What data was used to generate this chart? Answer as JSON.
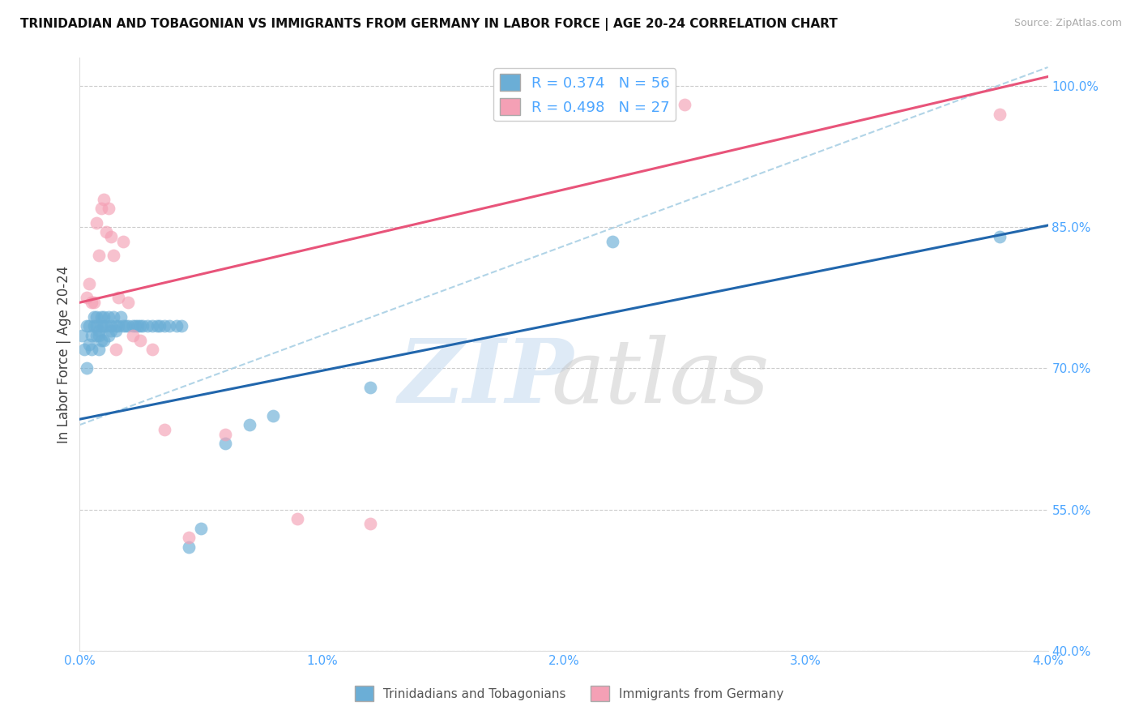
{
  "title": "TRINIDADIAN AND TOBAGONIAN VS IMMIGRANTS FROM GERMANY IN LABOR FORCE | AGE 20-24 CORRELATION CHART",
  "source": "Source: ZipAtlas.com",
  "ylabel": "In Labor Force | Age 20-24",
  "xlim": [
    0.0,
    0.04
  ],
  "ylim": [
    0.4,
    1.03
  ],
  "xtick_labels": [
    "0.0%",
    "1.0%",
    "2.0%",
    "3.0%",
    "4.0%"
  ],
  "xtick_values": [
    0.0,
    0.01,
    0.02,
    0.03,
    0.04
  ],
  "ytick_labels": [
    "40.0%",
    "55.0%",
    "70.0%",
    "85.0%",
    "100.0%"
  ],
  "ytick_values": [
    0.4,
    0.55,
    0.7,
    0.85,
    1.0
  ],
  "blue_color": "#6baed6",
  "pink_color": "#f4a0b5",
  "blue_line_color": "#2166ac",
  "pink_line_color": "#e8547a",
  "dashed_line_color": "#9ecae1",
  "R_blue": 0.374,
  "N_blue": 56,
  "R_pink": 0.498,
  "N_pink": 27,
  "legend_label_blue": "Trinidadians and Tobagonians",
  "legend_label_pink": "Immigrants from Germany",
  "blue_scatter_x": [
    0.0001,
    0.0002,
    0.0003,
    0.0003,
    0.0004,
    0.0004,
    0.0005,
    0.0005,
    0.0006,
    0.0006,
    0.0007,
    0.0007,
    0.0007,
    0.0008,
    0.0008,
    0.0008,
    0.0009,
    0.0009,
    0.0009,
    0.001,
    0.001,
    0.001,
    0.0011,
    0.0012,
    0.0012,
    0.0013,
    0.0013,
    0.0014,
    0.0015,
    0.0015,
    0.0016,
    0.0017,
    0.0018,
    0.0019,
    0.002,
    0.0022,
    0.0023,
    0.0024,
    0.0025,
    0.0026,
    0.0028,
    0.003,
    0.0032,
    0.0033,
    0.0035,
    0.0037,
    0.004,
    0.0042,
    0.0045,
    0.005,
    0.006,
    0.007,
    0.008,
    0.012,
    0.022,
    0.038
  ],
  "blue_scatter_y": [
    0.735,
    0.72,
    0.745,
    0.7,
    0.725,
    0.745,
    0.735,
    0.72,
    0.745,
    0.755,
    0.735,
    0.745,
    0.755,
    0.72,
    0.735,
    0.74,
    0.745,
    0.755,
    0.73,
    0.745,
    0.755,
    0.73,
    0.745,
    0.755,
    0.735,
    0.74,
    0.745,
    0.755,
    0.745,
    0.74,
    0.745,
    0.755,
    0.745,
    0.745,
    0.745,
    0.745,
    0.745,
    0.745,
    0.745,
    0.745,
    0.745,
    0.745,
    0.745,
    0.745,
    0.745,
    0.745,
    0.745,
    0.745,
    0.51,
    0.53,
    0.62,
    0.64,
    0.65,
    0.68,
    0.835,
    0.84
  ],
  "pink_scatter_x": [
    0.0003,
    0.0004,
    0.0005,
    0.0006,
    0.0007,
    0.0008,
    0.0009,
    0.001,
    0.0011,
    0.0012,
    0.0013,
    0.0014,
    0.0015,
    0.0016,
    0.0018,
    0.002,
    0.0022,
    0.0025,
    0.003,
    0.0035,
    0.0045,
    0.006,
    0.009,
    0.012,
    0.018,
    0.025,
    0.038
  ],
  "pink_scatter_y": [
    0.775,
    0.79,
    0.77,
    0.77,
    0.855,
    0.82,
    0.87,
    0.88,
    0.845,
    0.87,
    0.84,
    0.82,
    0.72,
    0.775,
    0.835,
    0.77,
    0.735,
    0.73,
    0.72,
    0.635,
    0.52,
    0.63,
    0.54,
    0.535,
    0.98,
    0.98,
    0.97
  ]
}
